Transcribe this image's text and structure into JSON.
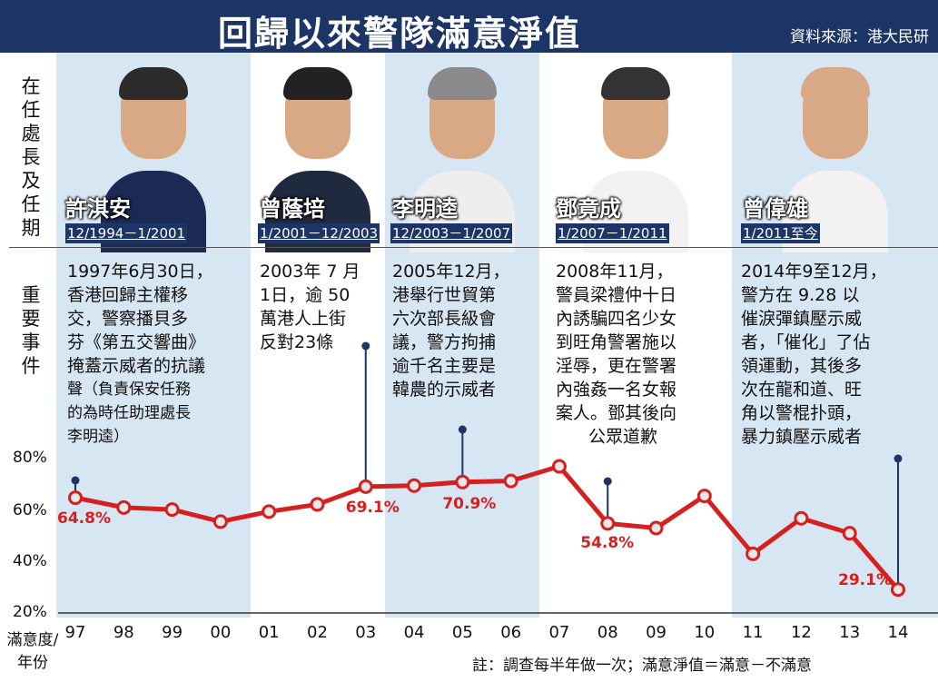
{
  "header": {
    "title": "回歸以來警隊滿意淨值",
    "source": "資料來源：港大民研"
  },
  "row_labels": {
    "commissioner": "在任處長及任期",
    "events": "重要事件"
  },
  "commissioners": [
    {
      "name": "許淇安",
      "term": "12/1994－1/2001",
      "event_lines": [
        "1997年6月30日，",
        "香港回歸主權移",
        "交，警察播貝多",
        "芬《第五交響曲》",
        "掩蓋示威者的抗議",
        "聲（負責保安任務",
        "的為時任助理處長",
        "李明逵）"
      ]
    },
    {
      "name": "曾蔭培",
      "term": "1/2001－12/2003",
      "event_lines": [
        "2003年 7 月",
        "1日，逾 50",
        "萬港人上街",
        "反對23條"
      ]
    },
    {
      "name": "李明逵",
      "term": "12/2003－1/2007",
      "event_lines": [
        "2005年12月，",
        "港舉行世貿第",
        "六次部長級會",
        "議，警方拘捕",
        "逾千名主要是",
        "韓農的示威者"
      ]
    },
    {
      "name": "鄧竟成",
      "term": "1/2007－1/2011",
      "event_lines": [
        "2008年11月，",
        "警員梁禮仲十日",
        "內誘騙四名少女",
        "到旺角警署施以",
        "淫辱，更在警署",
        "內強姦一名女報",
        "案人。鄧其後向",
        "公眾道歉"
      ]
    },
    {
      "name": "曾偉雄",
      "term": "1/2011至今",
      "event_lines": [
        "2014年9至12月，",
        "警方在 9.28 以",
        "催淚彈鎮壓示威",
        "者，「催化」了佔",
        "領運動，其後多",
        "次在龍和道、旺",
        "角以警棍扑頭，",
        "暴力鎮壓示威者"
      ]
    }
  ],
  "chart_data": {
    "type": "line",
    "ylabel": "滿意度/年份",
    "ylim": [
      20,
      80
    ],
    "yticks": [
      "80%",
      "60%",
      "40%",
      "20%"
    ],
    "categories": [
      "97",
      "98",
      "99",
      "00",
      "01",
      "02",
      "03",
      "04",
      "05",
      "06",
      "07",
      "08",
      "09",
      "10",
      "11",
      "12",
      "13",
      "14"
    ],
    "x": [
      97.0,
      98.0,
      99.0,
      100.0,
      101.0,
      102.0,
      103.0,
      104.0,
      105.0,
      106.0,
      107.0,
      108.0,
      109.0,
      110.0,
      111.0,
      112.0,
      113.0,
      114.0
    ],
    "series": [
      {
        "values": [
          64.8,
          61.0,
          60.2,
          55.5,
          59.4,
          62.2,
          69.1,
          69.5,
          70.9,
          71.3,
          77.0,
          54.8,
          53.0,
          65.5,
          43.0,
          56.8,
          51.0,
          29.1
        ]
      }
    ],
    "data_labels": [
      {
        "x": 97.0,
        "text": "64.8%"
      },
      {
        "x": 103.0,
        "text": "69.1%"
      },
      {
        "x": 105.0,
        "text": "70.9%"
      },
      {
        "x": 108.0,
        "text": "54.8%"
      },
      {
        "x": 114.0,
        "text": "29.1%"
      }
    ],
    "event_markers": [
      97.0,
      103.0,
      105.0,
      108.0,
      114.0
    ],
    "line_color": "#d61f1f",
    "marker_color": "#e8e8e8",
    "grid": false
  },
  "footnote": "註：調查每半年做一次；滿意淨值＝滿意－不滿意",
  "colors": {
    "banner": "#1d3566",
    "era_tint": "#d7e6f3",
    "accent": "#d61f1f"
  }
}
